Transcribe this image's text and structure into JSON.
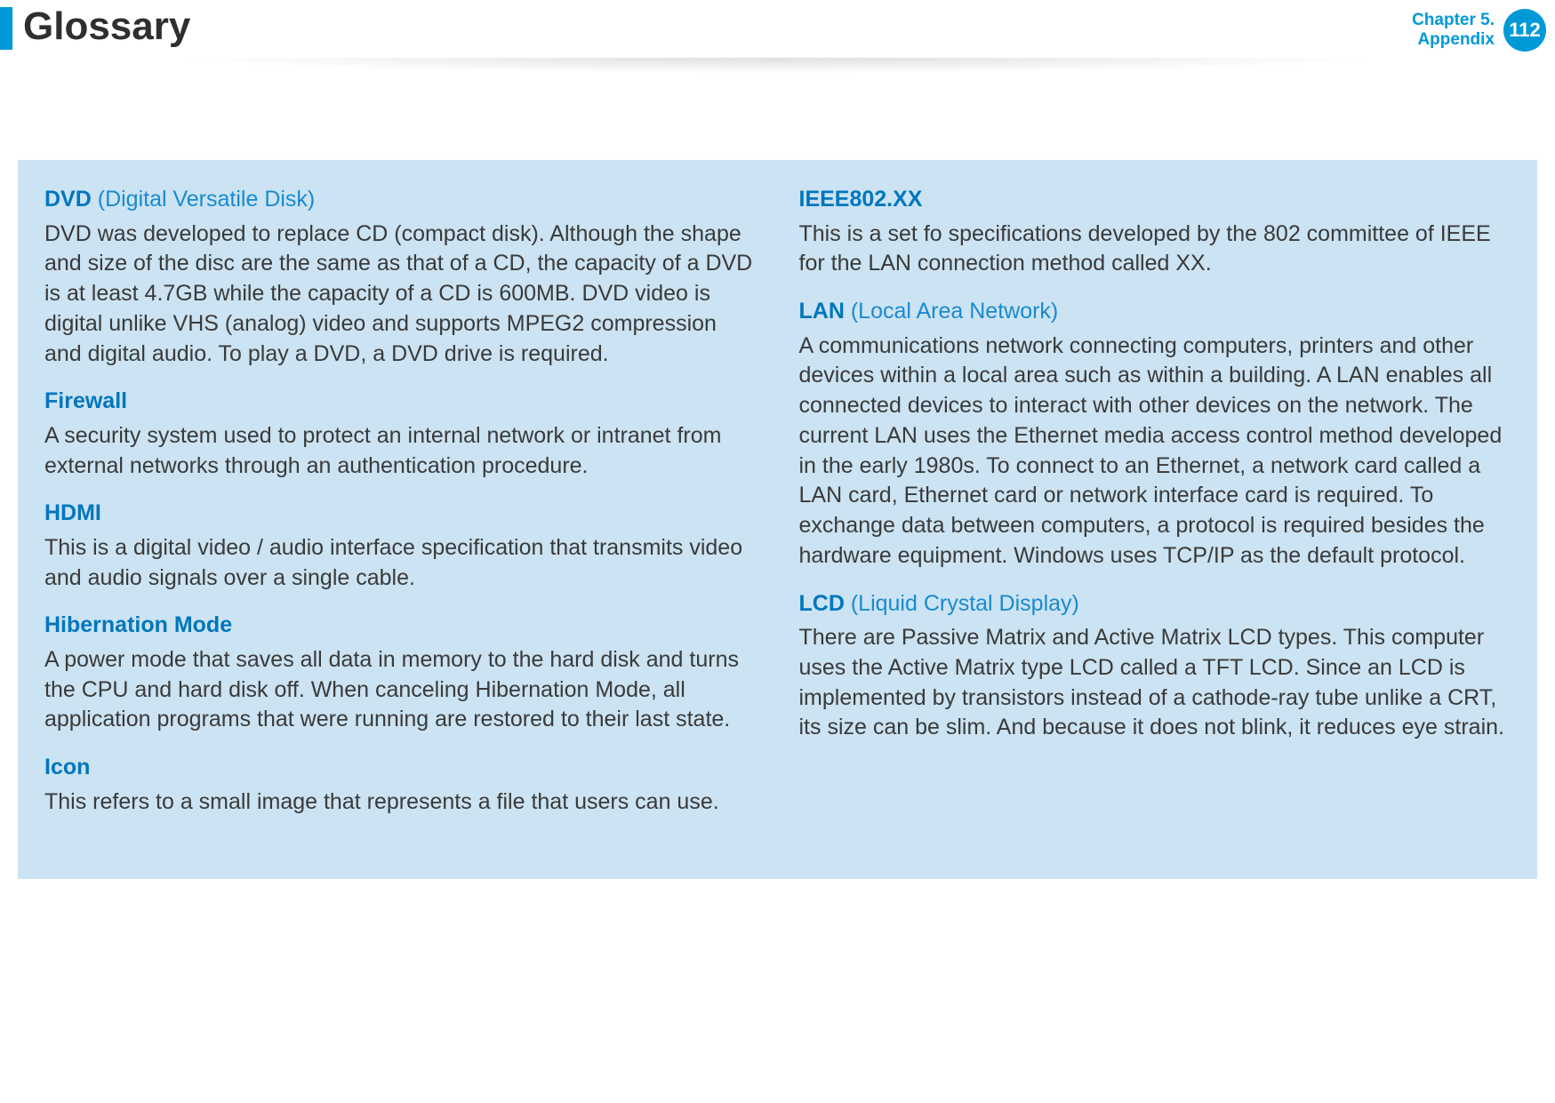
{
  "header": {
    "title": "Glossary",
    "chapter_line1": "Chapter 5.",
    "chapter_line2": "Appendix",
    "page_number": "112"
  },
  "colors": {
    "accent": "#0099d8",
    "term": "#0076bd",
    "expansion": "#1a8ad0",
    "body_text": "#3a3a3a",
    "title_text": "#2f2f2f",
    "panel_bg": "#cbe3f2",
    "page_bg": "#ffffff",
    "badge_text": "#ffffff"
  },
  "left_column": [
    {
      "term": "DVD",
      "expansion": " (Digital Versatile Disk)",
      "body": "DVD was developed to replace CD (compact disk). Although the shape and size of the disc are the same as that of a CD, the capacity of a DVD is at least 4.7GB while the capacity of a CD is 600MB. DVD video is digital unlike VHS (analog) video and supports MPEG2 compression and digital audio. To play a DVD, a DVD drive is required."
    },
    {
      "term": "Firewall",
      "expansion": "",
      "body": "A security system used to protect an internal network or intranet from external networks through an authentication procedure."
    },
    {
      "term": "HDMI",
      "expansion": "",
      "body": "This is a digital video / audio interface specification that transmits video and audio signals over a single cable."
    },
    {
      "term": "Hibernation Mode",
      "expansion": "",
      "body": "A power mode that saves all data in memory to the hard disk and turns the CPU and hard disk off. When canceling Hibernation Mode, all application programs that were running are restored to their last state."
    },
    {
      "term": "Icon",
      "expansion": "",
      "body": "This refers to a small image that represents a file that users can use."
    }
  ],
  "right_column": [
    {
      "term": "IEEE802.XX",
      "expansion": "",
      "body": "This is a set fo specifications developed by the 802 committee of IEEE for the LAN connection method called XX."
    },
    {
      "term": "LAN",
      "expansion": " (Local Area Network)",
      "body": "A communications network connecting computers, printers and other devices within a local area such as within a building. A LAN enables all connected devices to interact with other devices on the network. The current LAN uses the Ethernet media access control method developed in the early 1980s. To connect to an Ethernet, a network card called a LAN card, Ethernet card or network interface card is required. To exchange data between computers, a protocol is required besides the hardware equipment. Windows uses TCP/IP as the default protocol."
    },
    {
      "term": "LCD",
      "expansion": " (Liquid Crystal Display)",
      "body": "There are Passive Matrix and Active Matrix LCD types. This computer uses the Active Matrix type LCD called a TFT LCD. Since an LCD is implemented by transistors instead of a cathode-ray tube unlike a CRT, its size can be slim. And because it does not blink, it reduces eye strain."
    }
  ]
}
